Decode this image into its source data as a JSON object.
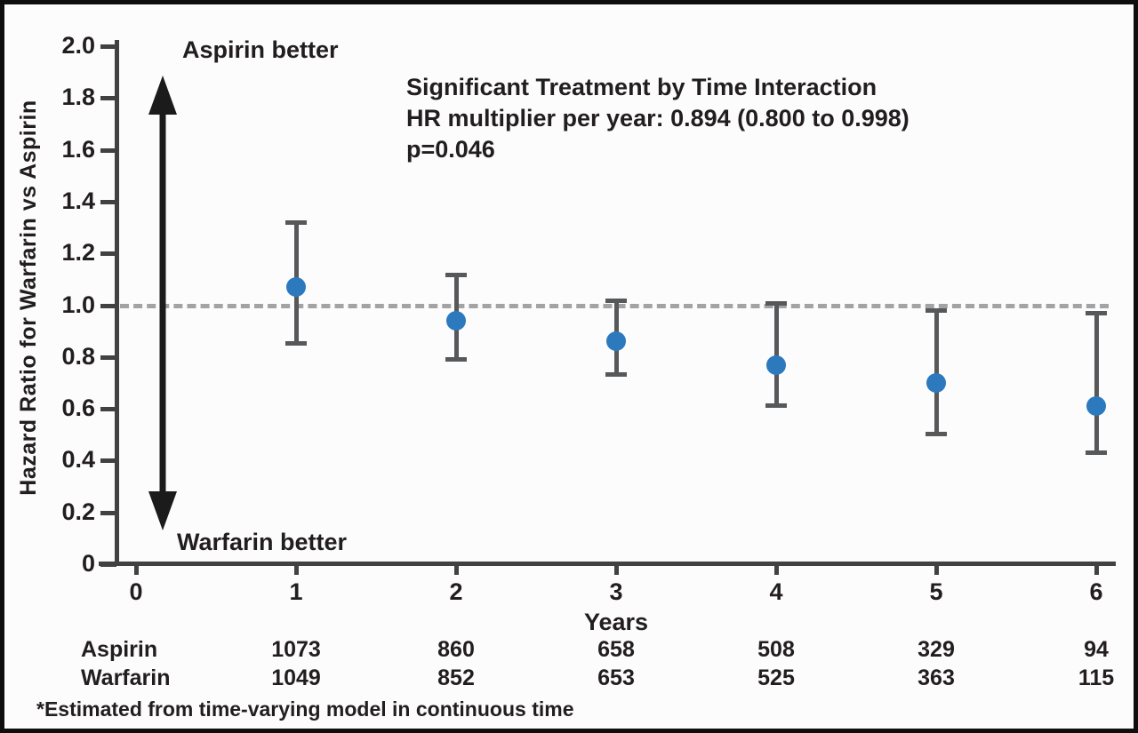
{
  "chart_data": {
    "type": "scatter",
    "title": "",
    "xlabel": "Years",
    "ylabel": "Hazard Ratio for Warfarin vs Aspirin",
    "xlim": [
      0,
      6.3
    ],
    "ylim": [
      0,
      2.0
    ],
    "grid": false,
    "legend_position": "none",
    "x_ticks": [
      {
        "value": 0,
        "label": "0"
      },
      {
        "value": 1,
        "label": "1"
      },
      {
        "value": 2,
        "label": "2"
      },
      {
        "value": 3,
        "label": "3"
      },
      {
        "value": 4,
        "label": "4"
      },
      {
        "value": 5,
        "label": "5"
      },
      {
        "value": 6,
        "label": "6"
      }
    ],
    "y_ticks": [
      {
        "value": 0,
        "label": "0"
      },
      {
        "value": 0.2,
        "label": "0.2"
      },
      {
        "value": 0.4,
        "label": "0.4"
      },
      {
        "value": 0.6,
        "label": "0.6"
      },
      {
        "value": 0.8,
        "label": "0.8"
      },
      {
        "value": 1.0,
        "label": "1.0"
      },
      {
        "value": 1.2,
        "label": "1.2"
      },
      {
        "value": 1.4,
        "label": "1.4"
      },
      {
        "value": 1.6,
        "label": "1.6"
      },
      {
        "value": 1.8,
        "label": "1.8"
      },
      {
        "value": 2.0,
        "label": "2.0"
      }
    ],
    "reference_line": {
      "y": 1.0,
      "style": "dashed",
      "color": "#a3a3a3"
    },
    "annotation": {
      "line1": "Significant Treatment by Time Interaction",
      "line2": "HR multiplier per year: 0.894 (0.800 to 0.998)",
      "line3": "p=0.046"
    },
    "direction_labels": {
      "up": "Aspirin better",
      "down": "Warfarin better"
    },
    "series": [
      {
        "name": "Hazard Ratio for Warfarin vs Aspirin",
        "x": [
          1,
          2,
          3,
          4,
          5,
          6
        ],
        "y": [
          1.07,
          0.94,
          0.86,
          0.77,
          0.7,
          0.61
        ],
        "ci_low": [
          0.85,
          0.79,
          0.73,
          0.61,
          0.5,
          0.43
        ],
        "ci_high": [
          1.32,
          1.12,
          1.02,
          1.01,
          0.98,
          0.97
        ]
      }
    ],
    "colors": {
      "point": "#2d79bd",
      "error_bar": "#57585a",
      "axis": "#414141",
      "text": "#221e1f"
    },
    "risk_table": {
      "rows": [
        {
          "label": "Aspirin",
          "values": [
            "1073",
            "860",
            "658",
            "508",
            "329",
            "94"
          ]
        },
        {
          "label": "Warfarin",
          "values": [
            "1049",
            "852",
            "653",
            "525",
            "363",
            "115"
          ]
        }
      ]
    },
    "footnote": "*Estimated from time-varying model in continuous time"
  }
}
